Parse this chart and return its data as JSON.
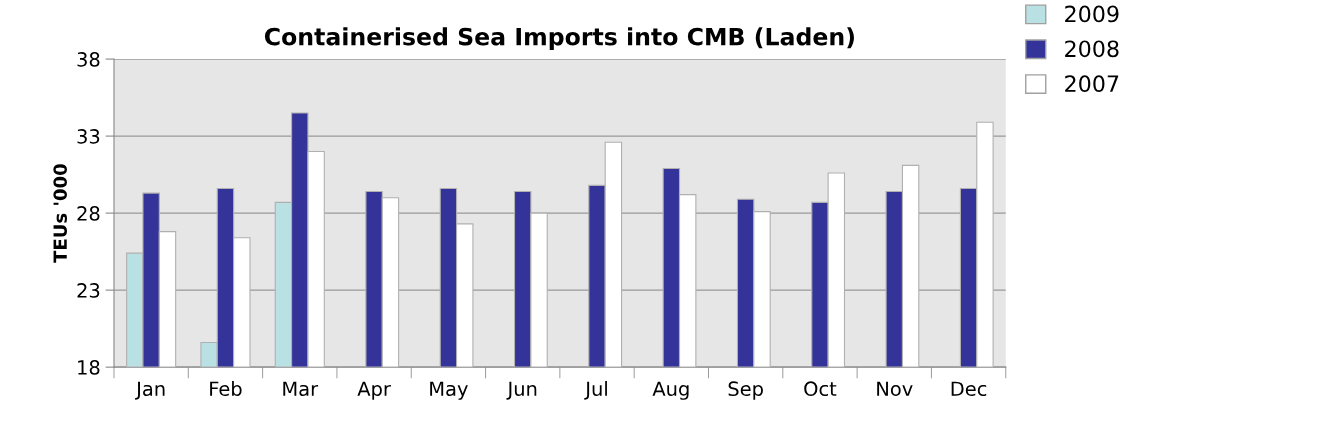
{
  "chart_data": {
    "type": "bar",
    "title": "Containerised Sea Imports into CMB (Laden)",
    "ylabel": "TEUs '000",
    "categories": [
      "Jan",
      "Feb",
      "Mar",
      "Apr",
      "May",
      "Jun",
      "Jul",
      "Aug",
      "Sep",
      "Oct",
      "Nov",
      "Dec"
    ],
    "series": [
      {
        "name": "2009",
        "color": "#b9e0e2",
        "values": [
          25.4,
          19.6,
          28.7,
          null,
          null,
          null,
          null,
          null,
          null,
          null,
          null,
          null
        ]
      },
      {
        "name": "2008",
        "color": "#333399",
        "values": [
          29.3,
          29.6,
          34.5,
          29.4,
          29.6,
          29.4,
          29.8,
          30.9,
          28.9,
          28.7,
          29.4,
          29.6
        ]
      },
      {
        "name": "2007",
        "color": "#ffffff",
        "values": [
          26.8,
          26.4,
          32.0,
          29.0,
          27.3,
          28.0,
          32.6,
          29.2,
          28.1,
          30.6,
          31.1,
          33.9
        ]
      }
    ],
    "ylim": [
      18,
      38
    ],
    "yticks": [
      18,
      23,
      28,
      33,
      38
    ],
    "grid": "y",
    "legend": "top right"
  }
}
